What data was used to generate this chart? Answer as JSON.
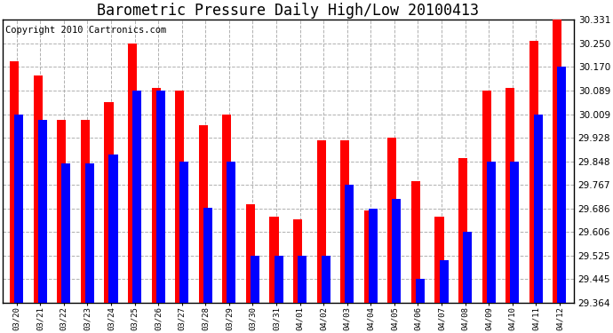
{
  "title": "Barometric Pressure Daily High/Low 20100413",
  "copyright": "Copyright 2010 Cartronics.com",
  "categories": [
    "03/20",
    "03/21",
    "03/22",
    "03/23",
    "03/24",
    "03/25",
    "03/26",
    "03/27",
    "03/28",
    "03/29",
    "03/30",
    "03/31",
    "04/01",
    "04/02",
    "04/03",
    "04/04",
    "04/05",
    "04/06",
    "04/07",
    "04/08",
    "04/09",
    "04/10",
    "04/11",
    "04/12"
  ],
  "high_values": [
    30.19,
    30.14,
    29.99,
    29.99,
    30.05,
    30.25,
    30.1,
    30.09,
    29.97,
    30.009,
    29.7,
    29.66,
    29.65,
    29.92,
    29.92,
    29.68,
    29.93,
    29.78,
    29.66,
    29.86,
    30.09,
    30.1,
    30.26,
    30.331
  ],
  "low_values": [
    30.009,
    29.99,
    29.84,
    29.84,
    29.87,
    30.089,
    30.089,
    29.848,
    29.69,
    29.848,
    29.525,
    29.525,
    29.525,
    29.525,
    29.767,
    29.686,
    29.72,
    29.445,
    29.51,
    29.606,
    29.848,
    29.848,
    30.009,
    30.17
  ],
  "ylim_min": 29.364,
  "ylim_max": 30.331,
  "yticks": [
    29.364,
    29.445,
    29.525,
    29.606,
    29.686,
    29.767,
    29.848,
    29.928,
    30.009,
    30.089,
    30.17,
    30.25,
    30.331
  ],
  "bar_color_high": "#ff0000",
  "bar_color_low": "#0000ff",
  "background_color": "#ffffff",
  "grid_color": "#b0b0b0",
  "title_fontsize": 12,
  "copyright_fontsize": 7.5
}
